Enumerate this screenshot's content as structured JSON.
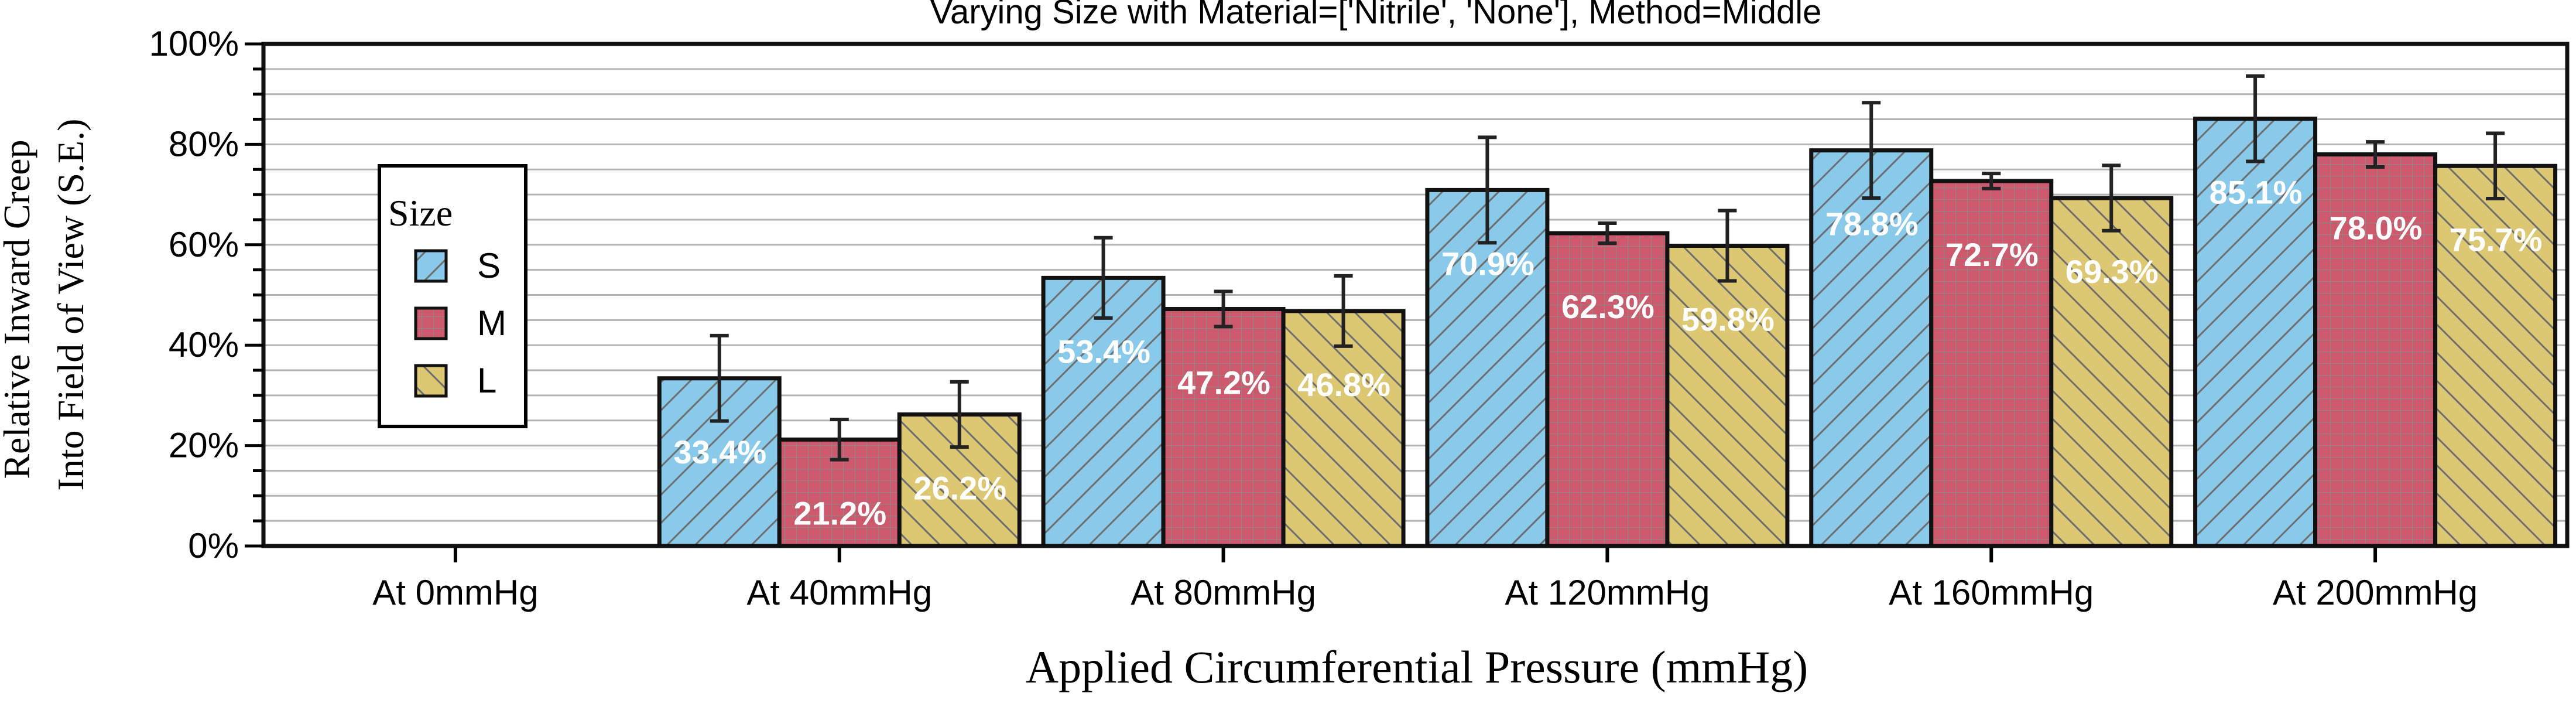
{
  "chart_data": {
    "type": "bar",
    "title": "Varying Size with Material=['Nitrile', 'None'], Method=Middle",
    "xlabel": "Applied Circumferential Pressure (mmHg)",
    "ylabel_lines": [
      "Relative Inward Creep",
      "Into Field of View (S.E.)"
    ],
    "categories": [
      "At 0mmHg",
      "At 40mmHg",
      "At 80mmHg",
      "At 120mmHg",
      "At 160mmHg",
      "At 200mmHg"
    ],
    "ylim": [
      0,
      100
    ],
    "yticks": [
      0,
      20,
      40,
      60,
      80,
      100
    ],
    "ytick_labels": [
      "0%",
      "20%",
      "40%",
      "60%",
      "80%",
      "100%"
    ],
    "grid": true,
    "legend": {
      "title": "Size",
      "placement": "upper-left"
    },
    "series": [
      {
        "name": "S",
        "color": "#89c9ea",
        "hatch": "forward-diagonal",
        "values": [
          0,
          33.4,
          53.4,
          70.9,
          78.8,
          85.1
        ],
        "errors": [
          0,
          8.5,
          8.0,
          10.5,
          9.5,
          8.5
        ],
        "labels": [
          "",
          "33.4%",
          "53.4%",
          "70.9%",
          "78.8%",
          "85.1%"
        ]
      },
      {
        "name": "M",
        "color": "#cc5a6c",
        "hatch": "grid",
        "values": [
          0,
          21.2,
          47.2,
          62.3,
          72.7,
          78.0
        ],
        "errors": [
          0,
          4.0,
          3.5,
          2.0,
          1.5,
          2.5
        ],
        "labels": [
          "",
          "21.2%",
          "47.2%",
          "62.3%",
          "72.7%",
          "78.0%"
        ]
      },
      {
        "name": "L",
        "color": "#dcc873",
        "hatch": "back-diagonal",
        "values": [
          0,
          26.2,
          46.8,
          59.8,
          69.3,
          75.7
        ],
        "errors": [
          0,
          6.5,
          7.0,
          7.0,
          6.5,
          6.5
        ],
        "labels": [
          "",
          "26.2%",
          "46.8%",
          "59.8%",
          "69.3%",
          "75.7%"
        ]
      }
    ]
  }
}
